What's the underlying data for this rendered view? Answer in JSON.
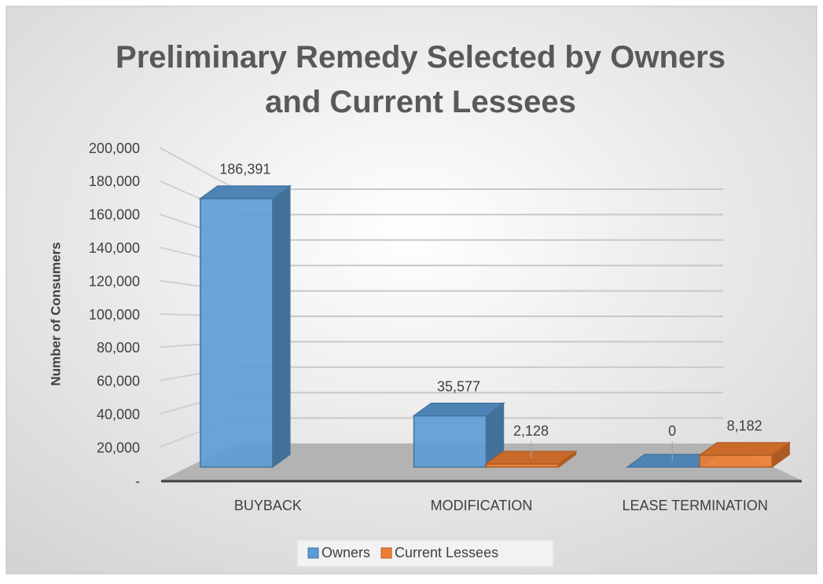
{
  "chart_data": {
    "type": "bar3d",
    "title": "Preliminary Remedy Selected by Owners and Current Lessees",
    "y_label": "Number of Consumers",
    "categories": [
      "BUYBACK",
      "MODIFICATION",
      "LEASE TERMINATION"
    ],
    "series": [
      {
        "name": "Owners",
        "color": "#5b9bd5",
        "values": [
          186391,
          35577,
          0
        ],
        "value_labels": [
          "186,391",
          "35,577",
          "0"
        ]
      },
      {
        "name": "Current Lessees",
        "color": "#ed7d31",
        "values": [
          null,
          2128,
          8182
        ],
        "value_labels": [
          null,
          "2,128",
          "8,182"
        ]
      }
    ],
    "ylim": [
      0,
      200000
    ],
    "yticks": [
      {
        "value": 0,
        "label": "-"
      },
      {
        "value": 20000,
        "label": "20,000"
      },
      {
        "value": 40000,
        "label": "40,000"
      },
      {
        "value": 60000,
        "label": "60,000"
      },
      {
        "value": 80000,
        "label": "80,000"
      },
      {
        "value": 100000,
        "label": "100,000"
      },
      {
        "value": 120000,
        "label": "120,000"
      },
      {
        "value": 140000,
        "label": "140,000"
      },
      {
        "value": 160000,
        "label": "160,000"
      },
      {
        "value": 180000,
        "label": "180,000"
      },
      {
        "value": 200000,
        "label": "200,000"
      }
    ],
    "grid": true,
    "legend": "bottom"
  }
}
